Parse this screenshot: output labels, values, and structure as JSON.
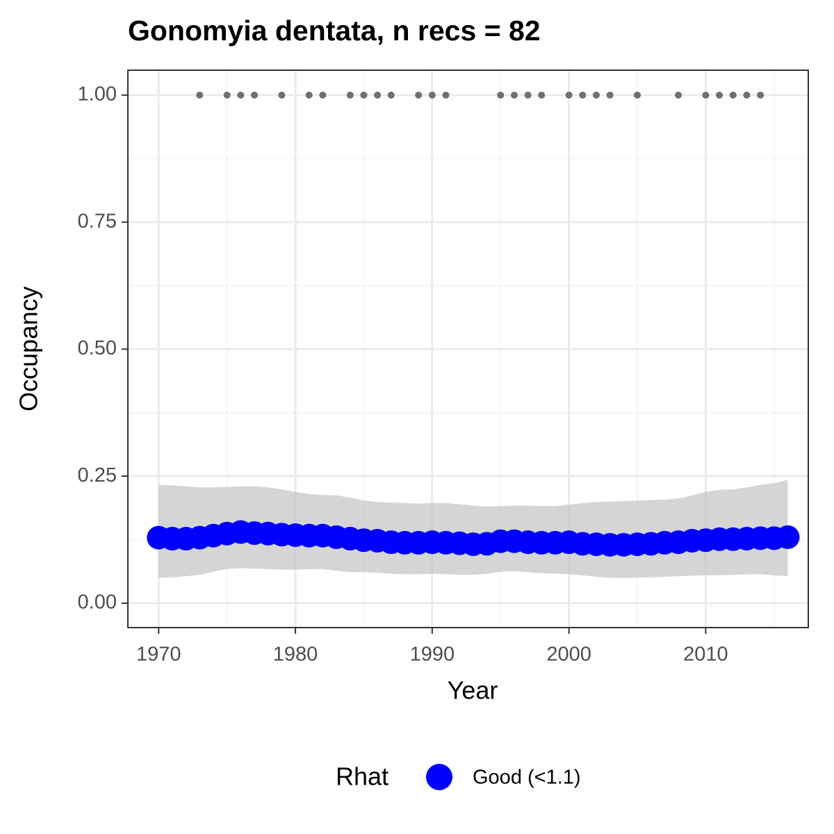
{
  "chart_data": {
    "type": "line",
    "title": "Gonomyia dentata, n recs = 82",
    "x_label": "Year",
    "y_label": "Occupancy",
    "legend_title": "Rhat",
    "xlim": [
      1967.75,
      2017.5
    ],
    "ylim": [
      -0.048,
      1.049
    ],
    "xticks": [
      1970,
      1980,
      1990,
      2000,
      2010
    ],
    "yticks": [
      {
        "value": 0,
        "label": "0.00"
      },
      {
        "value": 0.25,
        "label": "0.25"
      },
      {
        "value": 0.5,
        "label": "0.50"
      },
      {
        "value": 0.75,
        "label": "0.75"
      },
      {
        "value": 1,
        "label": "1.00"
      }
    ],
    "xminorticks": [
      1975,
      1985,
      1995,
      2005,
      2015
    ],
    "yminorticks": [
      0.125,
      0.375,
      0.625,
      0.875
    ],
    "grid": true,
    "legend_position": "bottom",
    "x": [
      1970,
      1971,
      1972,
      1973,
      1974,
      1975,
      1976,
      1977,
      1978,
      1979,
      1980,
      1981,
      1982,
      1983,
      1984,
      1985,
      1986,
      1987,
      1988,
      1989,
      1990,
      1991,
      1992,
      1993,
      1994,
      1995,
      1996,
      1997,
      1998,
      1999,
      2000,
      2001,
      2002,
      2003,
      2004,
      2005,
      2006,
      2007,
      2008,
      2009,
      2010,
      2011,
      2012,
      2013,
      2014,
      2015,
      2016
    ],
    "series": [
      {
        "name": "Good (<1.1)",
        "color": "#0000ff",
        "values": [
          0.129,
          0.127,
          0.127,
          0.129,
          0.133,
          0.137,
          0.14,
          0.138,
          0.137,
          0.135,
          0.134,
          0.133,
          0.133,
          0.13,
          0.127,
          0.124,
          0.123,
          0.12,
          0.119,
          0.119,
          0.12,
          0.119,
          0.118,
          0.116,
          0.117,
          0.122,
          0.122,
          0.12,
          0.119,
          0.119,
          0.12,
          0.117,
          0.116,
          0.115,
          0.115,
          0.116,
          0.117,
          0.119,
          0.12,
          0.123,
          0.124,
          0.126,
          0.126,
          0.127,
          0.128,
          0.128,
          0.13
        ]
      }
    ],
    "band": {
      "color": "#bebebe",
      "lower": [
        0.05,
        0.051,
        0.053,
        0.056,
        0.062,
        0.067,
        0.069,
        0.068,
        0.067,
        0.066,
        0.066,
        0.067,
        0.067,
        0.064,
        0.061,
        0.061,
        0.06,
        0.058,
        0.057,
        0.057,
        0.058,
        0.057,
        0.056,
        0.056,
        0.058,
        0.062,
        0.063,
        0.061,
        0.059,
        0.058,
        0.057,
        0.055,
        0.052,
        0.05,
        0.05,
        0.05,
        0.051,
        0.052,
        0.053,
        0.054,
        0.055,
        0.055,
        0.056,
        0.057,
        0.057,
        0.055,
        0.053
      ],
      "upper": [
        0.233,
        0.232,
        0.23,
        0.228,
        0.228,
        0.229,
        0.23,
        0.23,
        0.228,
        0.224,
        0.219,
        0.215,
        0.213,
        0.212,
        0.208,
        0.202,
        0.199,
        0.198,
        0.197,
        0.196,
        0.197,
        0.197,
        0.195,
        0.192,
        0.19,
        0.191,
        0.192,
        0.192,
        0.191,
        0.191,
        0.194,
        0.197,
        0.199,
        0.2,
        0.201,
        0.202,
        0.203,
        0.204,
        0.206,
        0.212,
        0.219,
        0.223,
        0.224,
        0.228,
        0.233,
        0.236,
        0.243
      ]
    },
    "records": {
      "color": "#707070",
      "x": [
        1973,
        1975,
        1976,
        1977,
        1979,
        1981,
        1982,
        1984,
        1985,
        1986,
        1987,
        1989,
        1990,
        1991,
        1995,
        1996,
        1997,
        1998,
        2000,
        2001,
        2002,
        2003,
        2005,
        2008,
        2010,
        2011,
        2012,
        2013,
        2014
      ],
      "values": [
        1,
        1,
        1,
        1,
        1,
        1,
        1,
        1,
        1,
        1,
        1,
        1,
        1,
        1,
        1,
        1,
        1,
        1,
        1,
        1,
        1,
        1,
        1,
        1,
        1,
        1,
        1,
        1,
        1
      ]
    }
  }
}
